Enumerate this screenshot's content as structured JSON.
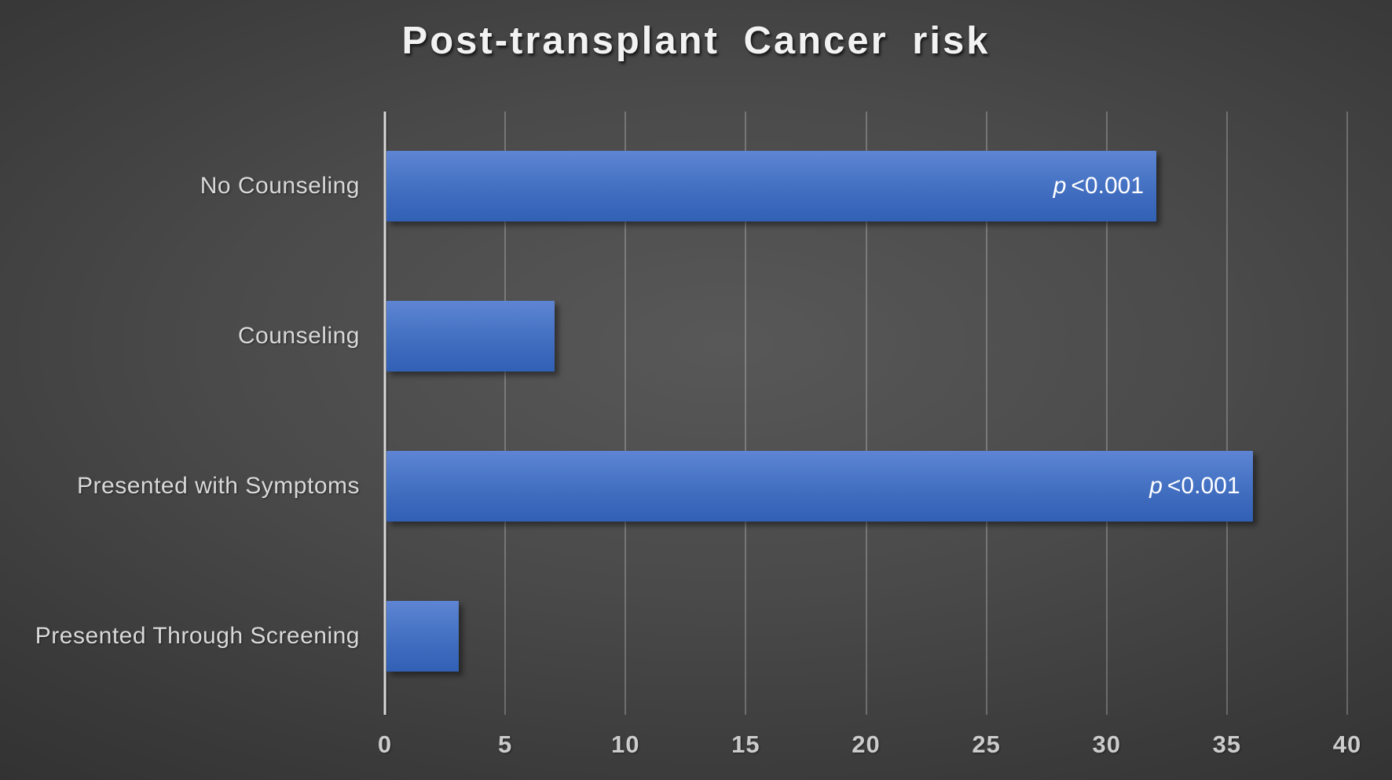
{
  "title": "Post-transplant Cancer risk",
  "chart_data": {
    "type": "bar",
    "orientation": "horizontal",
    "title": "Post-transplant Cancer risk",
    "categories": [
      "No Counseling",
      "Counseling",
      "Presented with Symptoms",
      "Presented Through Screening"
    ],
    "values": [
      32,
      7,
      36,
      3
    ],
    "bar_labels": [
      {
        "italic": "p",
        "rest": "<0.001"
      },
      null,
      {
        "italic": "p",
        "rest": "<0.001"
      },
      null
    ],
    "xlabel": "",
    "ylabel": "",
    "xlim": [
      0,
      40
    ],
    "xticks": [
      0,
      5,
      10,
      15,
      20,
      25,
      30,
      35,
      40
    ],
    "grid": true,
    "legend": false,
    "colors": {
      "bar_top": "#5e85d3",
      "bar_main": "#4472c4",
      "bar_bottom": "#3160b5",
      "axis_line": "#d9d9d9",
      "gridline": "rgba(255,255,255,0.24)",
      "tick_label": "#cccccc",
      "category_label": "#d9d9d9",
      "title": "#f2f2f2",
      "annotation": "#ffffff",
      "background_center": "#585858",
      "background_edge": "#232323"
    }
  }
}
